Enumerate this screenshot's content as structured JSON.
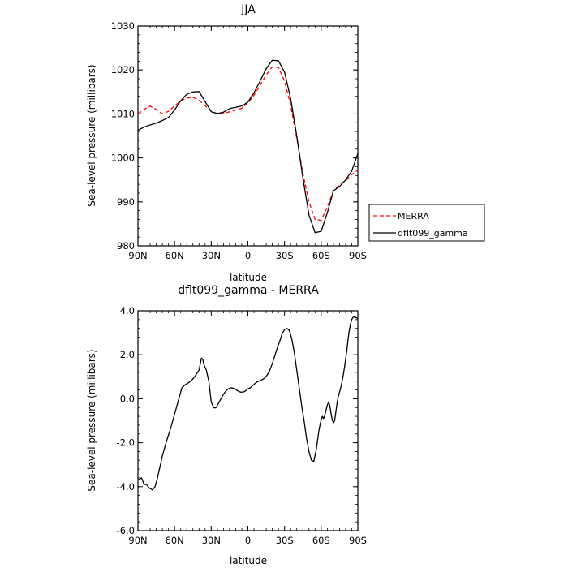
{
  "chart_data": [
    {
      "type": "line",
      "title": "JJA",
      "xlabel": "latitude",
      "ylabel": "Sea-level pressure (millibars)",
      "xlim": [
        90,
        -90
      ],
      "ylim": [
        980,
        1030
      ],
      "x_ticks": [
        90,
        60,
        30,
        0,
        -30,
        -60,
        -90
      ],
      "x_tick_labels": [
        "90N",
        "60N",
        "30N",
        "0",
        "30S",
        "60S",
        "90S"
      ],
      "y_ticks": [
        980,
        990,
        1000,
        1010,
        1020,
        1030
      ],
      "y_tick_labels": [
        "980",
        "990",
        "1000",
        "1010",
        "1020",
        "1030"
      ],
      "legend_position": "right-bottom-outside",
      "series": [
        {
          "name": "MERRA",
          "color": "#ff0000",
          "dash": "dashed",
          "x": [
            90,
            85,
            80,
            75,
            70,
            65,
            60,
            55,
            50,
            45,
            40,
            35,
            30,
            25,
            20,
            15,
            10,
            5,
            0,
            -5,
            -10,
            -15,
            -20,
            -25,
            -30,
            -35,
            -40,
            -45,
            -50,
            -55,
            -60,
            -65,
            -70,
            -75,
            -80,
            -85,
            -90
          ],
          "y": [
            1010.0,
            1011.0,
            1011.8,
            1011.0,
            1010.0,
            1010.6,
            1011.8,
            1013.0,
            1013.6,
            1013.8,
            1013.1,
            1011.9,
            1010.6,
            1010.0,
            1010.1,
            1010.5,
            1010.9,
            1011.3,
            1012.5,
            1014.3,
            1016.5,
            1018.9,
            1020.7,
            1020.6,
            1017.5,
            1012.0,
            1004.5,
            996.5,
            990.0,
            986.0,
            985.8,
            988.8,
            992.5,
            993.8,
            994.8,
            996.2,
            997.2
          ]
        },
        {
          "name": "dflt099_gamma",
          "color": "#000000",
          "dash": "solid",
          "x": [
            90,
            85,
            80,
            75,
            70,
            65,
            60,
            55,
            50,
            45,
            40,
            35,
            30,
            25,
            20,
            15,
            10,
            5,
            0,
            -5,
            -10,
            -15,
            -20,
            -25,
            -30,
            -35,
            -40,
            -45,
            -50,
            -55,
            -60,
            -65,
            -70,
            -75,
            -80,
            -85,
            -90
          ],
          "y": [
            1006.3,
            1007.0,
            1007.5,
            1007.9,
            1008.5,
            1009.2,
            1010.9,
            1013.0,
            1014.5,
            1015.0,
            1015.1,
            1012.8,
            1010.5,
            1010.1,
            1010.4,
            1011.2,
            1011.5,
            1011.8,
            1012.7,
            1014.8,
            1017.5,
            1020.3,
            1022.2,
            1022.1,
            1019.5,
            1013.5,
            1005.0,
            995.5,
            987.0,
            983.0,
            983.3,
            987.5,
            992.5,
            993.5,
            995.0,
            997.0,
            1001.0
          ]
        }
      ]
    },
    {
      "type": "line",
      "title": "dflt099_gamma - MERRA",
      "xlabel": "latitude",
      "ylabel": "Sea-level pressure (millibars)",
      "xlim": [
        90,
        -90
      ],
      "ylim": [
        -6,
        4
      ],
      "x_ticks": [
        90,
        60,
        30,
        0,
        -30,
        -60,
        -90
      ],
      "x_tick_labels": [
        "90N",
        "60N",
        "30N",
        "0",
        "30S",
        "60S",
        "90S"
      ],
      "y_ticks": [
        -6,
        -4,
        -2,
        0,
        2,
        4
      ],
      "y_tick_labels": [
        "-6.0",
        "-4.0",
        "-2.0",
        "0.0",
        "2.0",
        "4.0"
      ],
      "series": [
        {
          "color": "#000000",
          "dash": "solid",
          "x": [
            90,
            87,
            85,
            83,
            81,
            78,
            76,
            74,
            72,
            70,
            67,
            63,
            60,
            57,
            54,
            51,
            48,
            45,
            43,
            40,
            38,
            37,
            36,
            34,
            32,
            30,
            28,
            27,
            26,
            25,
            24,
            22,
            20,
            18,
            16,
            14,
            12,
            10,
            8,
            6,
            4,
            2,
            0,
            -2,
            -4,
            -6,
            -8,
            -10,
            -12,
            -14,
            -16,
            -18,
            -20,
            -22,
            -24,
            -26,
            -28,
            -30,
            -32,
            -34,
            -36,
            -38,
            -40,
            -42,
            -44,
            -46,
            -48,
            -50,
            -52,
            -54,
            -56,
            -58,
            -59,
            -60,
            -61,
            -62,
            -63,
            -64,
            -65,
            -66,
            -67,
            -68,
            -69,
            -70,
            -71,
            -72,
            -73,
            -74,
            -75,
            -76,
            -77,
            -78,
            -79,
            -80,
            -81,
            -82,
            -83,
            -84,
            -85,
            -86,
            -87,
            -88,
            -89,
            -90
          ],
          "y": [
            -3.7,
            -3.6,
            -3.9,
            -3.9,
            -4.05,
            -4.15,
            -4.0,
            -3.6,
            -3.1,
            -2.6,
            -2.0,
            -1.3,
            -0.7,
            -0.1,
            0.5,
            0.65,
            0.75,
            0.9,
            1.05,
            1.3,
            1.85,
            1.8,
            1.55,
            1.3,
            0.8,
            -0.15,
            -0.4,
            -0.42,
            -0.4,
            -0.3,
            -0.2,
            0.0,
            0.2,
            0.35,
            0.45,
            0.5,
            0.48,
            0.42,
            0.35,
            0.3,
            0.3,
            0.35,
            0.45,
            0.5,
            0.6,
            0.7,
            0.78,
            0.82,
            0.88,
            0.95,
            1.1,
            1.3,
            1.6,
            1.95,
            2.3,
            2.6,
            2.95,
            3.15,
            3.2,
            3.1,
            2.7,
            2.1,
            1.3,
            0.5,
            -0.3,
            -1.0,
            -1.8,
            -2.4,
            -2.8,
            -2.85,
            -2.3,
            -1.5,
            -1.2,
            -0.95,
            -0.8,
            -0.9,
            -0.75,
            -0.5,
            -0.3,
            -0.15,
            -0.3,
            -0.65,
            -0.95,
            -1.1,
            -1.0,
            -0.6,
            -0.2,
            0.1,
            0.3,
            0.5,
            0.75,
            1.05,
            1.4,
            1.8,
            2.2,
            2.7,
            3.1,
            3.4,
            3.6,
            3.7,
            3.72,
            3.7,
            3.68,
            3.65
          ]
        }
      ]
    }
  ]
}
